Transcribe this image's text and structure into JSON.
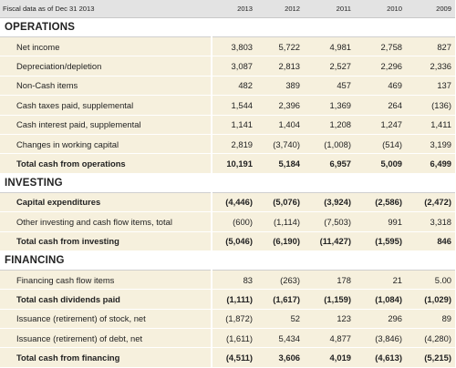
{
  "header": {
    "label": "Fiscal data as of Dec 31 2013",
    "years": [
      "2013",
      "2012",
      "2011",
      "2010",
      "2009"
    ]
  },
  "sections": [
    {
      "title": "OPERATIONS",
      "rows": [
        {
          "label": "Net income",
          "values": [
            "3,803",
            "5,722",
            "4,981",
            "2,758",
            "827"
          ],
          "total": false
        },
        {
          "label": "Depreciation/depletion",
          "values": [
            "3,087",
            "2,813",
            "2,527",
            "2,296",
            "2,336"
          ],
          "total": false
        },
        {
          "label": "Non-Cash items",
          "values": [
            "482",
            "389",
            "457",
            "469",
            "137"
          ],
          "total": false
        },
        {
          "label": "Cash taxes paid, supplemental",
          "values": [
            "1,544",
            "2,396",
            "1,369",
            "264",
            "(136)"
          ],
          "total": false
        },
        {
          "label": "Cash interest paid, supplemental",
          "values": [
            "1,141",
            "1,404",
            "1,208",
            "1,247",
            "1,411"
          ],
          "total": false
        },
        {
          "label": "Changes in working capital",
          "values": [
            "2,819",
            "(3,740)",
            "(1,008)",
            "(514)",
            "3,199"
          ],
          "total": false
        },
        {
          "label": "Total cash from operations",
          "values": [
            "10,191",
            "5,184",
            "6,957",
            "5,009",
            "6,499"
          ],
          "total": true
        }
      ]
    },
    {
      "title": "INVESTING",
      "rows": [
        {
          "label": "Capital expenditures",
          "values": [
            "(4,446)",
            "(5,076)",
            "(3,924)",
            "(2,586)",
            "(2,472)"
          ],
          "total": true
        },
        {
          "label": "Other investing and cash flow items, total",
          "values": [
            "(600)",
            "(1,114)",
            "(7,503)",
            "991",
            "3,318"
          ],
          "total": false
        },
        {
          "label": "Total cash from investing",
          "values": [
            "(5,046)",
            "(6,190)",
            "(11,427)",
            "(1,595)",
            "846"
          ],
          "total": true
        }
      ]
    },
    {
      "title": "FINANCING",
      "rows": [
        {
          "label": "Financing cash flow items",
          "values": [
            "83",
            "(263)",
            "178",
            "21",
            "5.00"
          ],
          "total": false
        },
        {
          "label": "Total cash dividends paid",
          "values": [
            "(1,111)",
            "(1,617)",
            "(1,159)",
            "(1,084)",
            "(1,029)"
          ],
          "total": true
        },
        {
          "label": "Issuance (retirement) of stock, net",
          "values": [
            "(1,872)",
            "52",
            "123",
            "296",
            "89"
          ],
          "total": false
        },
        {
          "label": "Issuance (retirement) of debt, net",
          "values": [
            "(1,611)",
            "5,434",
            "4,877",
            "(3,846)",
            "(4,280)"
          ],
          "total": false
        },
        {
          "label": "Total cash from financing",
          "values": [
            "(4,511)",
            "3,606",
            "4,019",
            "(4,613)",
            "(5,215)"
          ],
          "total": true
        }
      ]
    }
  ]
}
